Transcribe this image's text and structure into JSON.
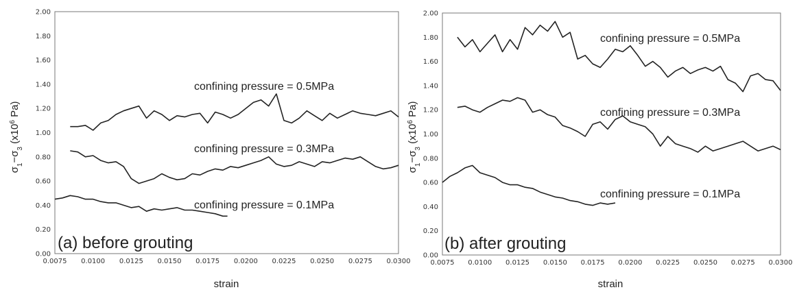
{
  "chart_data": [
    {
      "type": "line",
      "panel_label": "(a) before grouting",
      "xlabel": "strain",
      "ylabel": "σ1−σ3 (x10⁶ Pa)",
      "xlim": [
        0.0075,
        0.03
      ],
      "ylim": [
        0,
        2.0
      ],
      "xticks": [
        "0.0075",
        "0.0100",
        "0.0125",
        "0.0150",
        "0.0175",
        "0.0200",
        "0.0225",
        "0.0250",
        "0.0275",
        "0.0300"
      ],
      "yticks": [
        "0.00",
        "0.20",
        "0.40",
        "0.60",
        "0.80",
        "1.00",
        "1.20",
        "1.40",
        "1.60",
        "1.80",
        "2.00"
      ],
      "annotations": [
        "confining pressure = 0.5MPa",
        "confining pressure = 0.3MPa",
        "confining pressure = 0.1MPa"
      ],
      "series": [
        {
          "x": [
            0.0085,
            0.009,
            0.0095,
            0.01,
            0.0105,
            0.011,
            0.0115,
            0.012,
            0.0125,
            0.013,
            0.0135,
            0.014,
            0.0145,
            0.015,
            0.0155,
            0.016,
            0.0165,
            0.017,
            0.0175,
            0.018,
            0.0185,
            0.019,
            0.0195,
            0.02,
            0.0205,
            0.021,
            0.0215,
            0.022,
            0.0225,
            0.023,
            0.0235,
            0.024,
            0.0245,
            0.025,
            0.0255,
            0.026,
            0.0265,
            0.027,
            0.0275,
            0.028,
            0.0285,
            0.029,
            0.0295,
            0.03
          ],
          "y": [
            1.05,
            1.05,
            1.06,
            1.02,
            1.08,
            1.1,
            1.15,
            1.18,
            1.2,
            1.22,
            1.12,
            1.18,
            1.15,
            1.1,
            1.14,
            1.13,
            1.15,
            1.16,
            1.08,
            1.17,
            1.15,
            1.12,
            1.15,
            1.2,
            1.25,
            1.27,
            1.22,
            1.32,
            1.1,
            1.08,
            1.12,
            1.18,
            1.14,
            1.1,
            1.16,
            1.12,
            1.15,
            1.18,
            1.16,
            1.15,
            1.14,
            1.16,
            1.18,
            1.13
          ]
        },
        {
          "x": [
            0.0085,
            0.009,
            0.0095,
            0.01,
            0.0105,
            0.011,
            0.0115,
            0.012,
            0.0125,
            0.013,
            0.0135,
            0.014,
            0.0145,
            0.015,
            0.0155,
            0.016,
            0.0165,
            0.017,
            0.0175,
            0.018,
            0.0185,
            0.019,
            0.0195,
            0.02,
            0.0205,
            0.021,
            0.0215,
            0.022,
            0.0225,
            0.023,
            0.0235,
            0.024,
            0.0245,
            0.025,
            0.0255,
            0.026,
            0.0265,
            0.027,
            0.0275,
            0.028,
            0.0285,
            0.029,
            0.0295,
            0.03
          ],
          "y": [
            0.85,
            0.84,
            0.8,
            0.81,
            0.77,
            0.75,
            0.76,
            0.72,
            0.62,
            0.58,
            0.6,
            0.62,
            0.66,
            0.63,
            0.61,
            0.62,
            0.66,
            0.65,
            0.68,
            0.7,
            0.69,
            0.72,
            0.71,
            0.73,
            0.75,
            0.77,
            0.8,
            0.74,
            0.72,
            0.73,
            0.76,
            0.74,
            0.72,
            0.76,
            0.75,
            0.77,
            0.79,
            0.78,
            0.8,
            0.76,
            0.72,
            0.7,
            0.71,
            0.73
          ]
        },
        {
          "x": [
            0.0075,
            0.008,
            0.0085,
            0.009,
            0.0095,
            0.01,
            0.0105,
            0.011,
            0.0115,
            0.012,
            0.0125,
            0.013,
            0.0135,
            0.014,
            0.0145,
            0.015,
            0.0155,
            0.016,
            0.0165,
            0.017,
            0.0175,
            0.018,
            0.0185,
            0.0188
          ],
          "y": [
            0.45,
            0.46,
            0.48,
            0.47,
            0.45,
            0.45,
            0.43,
            0.42,
            0.42,
            0.4,
            0.38,
            0.39,
            0.35,
            0.37,
            0.36,
            0.37,
            0.38,
            0.36,
            0.36,
            0.35,
            0.34,
            0.33,
            0.31,
            0.31
          ]
        }
      ]
    },
    {
      "type": "line",
      "panel_label": "(b) after grouting",
      "xlabel": "strain",
      "ylabel": "σ1−σ3 (x10⁶ Pa)",
      "xlim": [
        0.0075,
        0.03
      ],
      "ylim": [
        0,
        2.0
      ],
      "xticks": [
        "0.0075",
        "0.0100",
        "0.0125",
        "0.0150",
        "0.0175",
        "0.0200",
        "0.0225",
        "0.0250",
        "0.0275",
        "0.0300"
      ],
      "yticks": [
        "0.00",
        "0.20",
        "0.40",
        "0.60",
        "0.80",
        "1.00",
        "1.20",
        "1.40",
        "1.60",
        "1.80",
        "2.00"
      ],
      "annotations": [
        "confining pressure = 0.5MPa",
        "confining pressure = 0.3MPa",
        "confining pressure = 0.1MPa"
      ],
      "series": [
        {
          "x": [
            0.0085,
            0.009,
            0.0095,
            0.01,
            0.0105,
            0.011,
            0.0115,
            0.012,
            0.0125,
            0.013,
            0.0135,
            0.014,
            0.0145,
            0.015,
            0.0155,
            0.016,
            0.0165,
            0.017,
            0.0175,
            0.018,
            0.0185,
            0.019,
            0.0195,
            0.02,
            0.0205,
            0.021,
            0.0215,
            0.022,
            0.0225,
            0.023,
            0.0235,
            0.024,
            0.0245,
            0.025,
            0.0255,
            0.026,
            0.0265,
            0.027,
            0.0275,
            0.028,
            0.0285,
            0.029,
            0.0295,
            0.03
          ],
          "y": [
            1.8,
            1.72,
            1.78,
            1.68,
            1.75,
            1.82,
            1.68,
            1.78,
            1.7,
            1.88,
            1.82,
            1.9,
            1.85,
            1.93,
            1.8,
            1.84,
            1.62,
            1.65,
            1.58,
            1.55,
            1.62,
            1.7,
            1.68,
            1.73,
            1.65,
            1.56,
            1.6,
            1.55,
            1.47,
            1.52,
            1.55,
            1.5,
            1.53,
            1.55,
            1.52,
            1.56,
            1.45,
            1.42,
            1.35,
            1.48,
            1.5,
            1.45,
            1.44,
            1.36
          ]
        },
        {
          "x": [
            0.0085,
            0.009,
            0.0095,
            0.01,
            0.0105,
            0.011,
            0.0115,
            0.012,
            0.0125,
            0.013,
            0.0135,
            0.014,
            0.0145,
            0.015,
            0.0155,
            0.016,
            0.0165,
            0.017,
            0.0175,
            0.018,
            0.0185,
            0.019,
            0.0195,
            0.02,
            0.0205,
            0.021,
            0.0215,
            0.022,
            0.0225,
            0.023,
            0.0235,
            0.024,
            0.0245,
            0.025,
            0.0255,
            0.026,
            0.0265,
            0.027,
            0.0275,
            0.028,
            0.0285,
            0.029,
            0.0295,
            0.03
          ],
          "y": [
            1.22,
            1.23,
            1.2,
            1.18,
            1.22,
            1.25,
            1.28,
            1.27,
            1.3,
            1.28,
            1.18,
            1.2,
            1.16,
            1.14,
            1.07,
            1.05,
            1.02,
            0.98,
            1.08,
            1.1,
            1.04,
            1.12,
            1.15,
            1.1,
            1.08,
            1.06,
            1.0,
            0.9,
            0.98,
            0.92,
            0.9,
            0.88,
            0.85,
            0.9,
            0.86,
            0.88,
            0.9,
            0.92,
            0.94,
            0.9,
            0.86,
            0.88,
            0.9,
            0.87
          ]
        },
        {
          "x": [
            0.0075,
            0.008,
            0.0085,
            0.009,
            0.0095,
            0.01,
            0.0105,
            0.011,
            0.0115,
            0.012,
            0.0125,
            0.013,
            0.0135,
            0.014,
            0.0145,
            0.015,
            0.0155,
            0.016,
            0.0165,
            0.017,
            0.0175,
            0.018,
            0.0185,
            0.019
          ],
          "y": [
            0.6,
            0.65,
            0.68,
            0.72,
            0.74,
            0.68,
            0.66,
            0.64,
            0.6,
            0.58,
            0.58,
            0.56,
            0.55,
            0.52,
            0.5,
            0.48,
            0.47,
            0.45,
            0.44,
            0.42,
            0.41,
            0.43,
            0.42,
            0.43
          ]
        }
      ]
    }
  ]
}
